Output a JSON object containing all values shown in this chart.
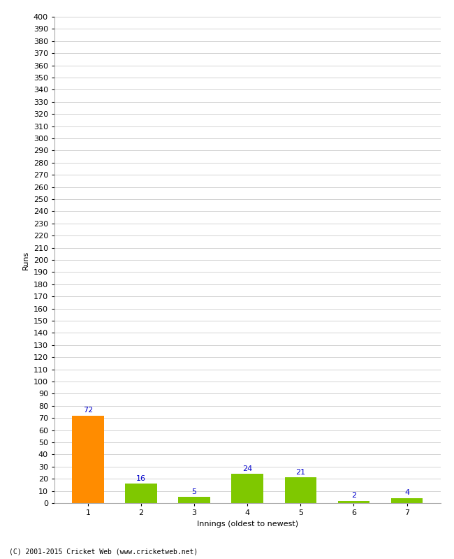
{
  "categories": [
    "1",
    "2",
    "3",
    "4",
    "5",
    "6",
    "7"
  ],
  "values": [
    72,
    16,
    5,
    24,
    21,
    2,
    4
  ],
  "bar_colors": [
    "#ff8c00",
    "#7fc800",
    "#7fc800",
    "#7fc800",
    "#7fc800",
    "#7fc800",
    "#7fc800"
  ],
  "xlabel": "Innings (oldest to newest)",
  "ylabel": "Runs",
  "ylim": [
    0,
    400
  ],
  "ytick_step": 10,
  "label_color": "#0000cc",
  "label_fontsize": 8,
  "footer": "(C) 2001-2015 Cricket Web (www.cricketweb.net)",
  "background_color": "#ffffff",
  "grid_color": "#cccccc",
  "tick_fontsize": 8,
  "xlabel_fontsize": 8,
  "ylabel_fontsize": 8
}
